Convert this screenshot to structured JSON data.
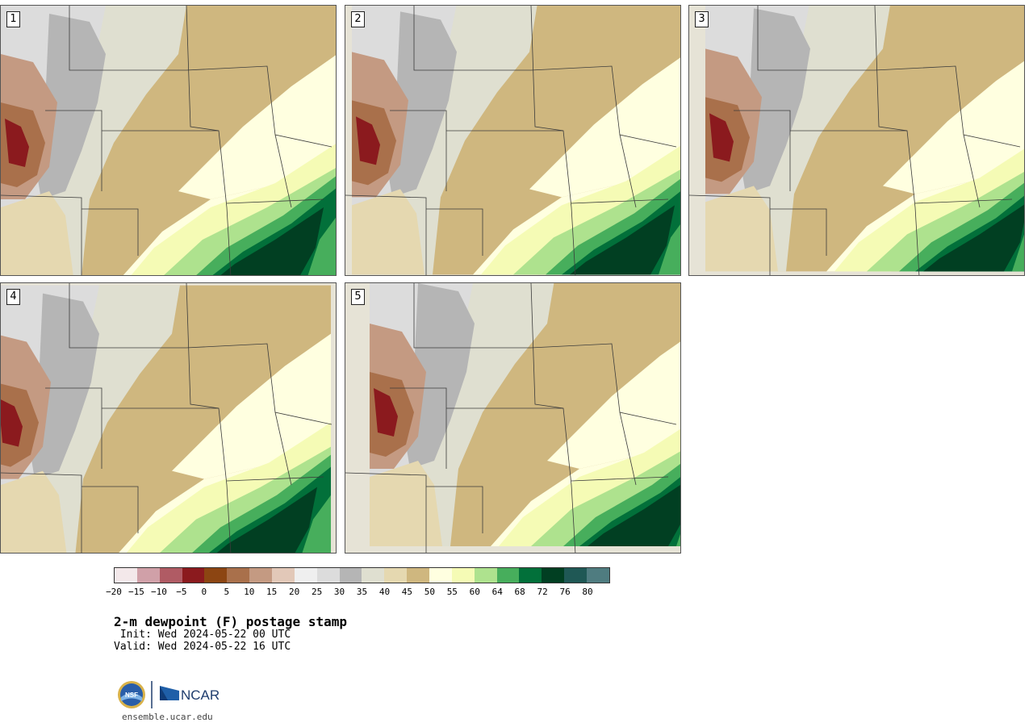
{
  "panels": [
    {
      "label": "1"
    },
    {
      "label": "2"
    },
    {
      "label": "3"
    },
    {
      "label": "4"
    },
    {
      "label": "5"
    }
  ],
  "colorbar": {
    "colors": [
      "#f3e8ea",
      "#d0a0a8",
      "#b05b64",
      "#8b1a1e",
      "#8c4512",
      "#a9704b",
      "#c49a82",
      "#e2c8b8",
      "#efefef",
      "#dcdcdc",
      "#b5b5b5",
      "#dfdfd0",
      "#e5d8b0",
      "#cfb77f",
      "#ffffe0",
      "#f5fbb5",
      "#aee28e",
      "#47ae5c",
      "#02703a",
      "#013f22",
      "#1f5855",
      "#4f7c80"
    ],
    "tick_labels": [
      "−20",
      "−15",
      "−10",
      "−5",
      "0",
      "5",
      "10",
      "15",
      "20",
      "25",
      "30",
      "35",
      "40",
      "45",
      "50",
      "55",
      "60",
      "64",
      "68",
      "72",
      "76",
      "80"
    ]
  },
  "text": {
    "title": "2-m dewpoint (F) postage stamp",
    "init": " Init: Wed 2024-05-22 00 UTC",
    "valid": "Valid: Wed 2024-05-22 16 UTC",
    "site": "ensemble.ucar.edu"
  },
  "logo": {
    "nsf_text": "NSF",
    "ncar_text": "NCAR"
  }
}
